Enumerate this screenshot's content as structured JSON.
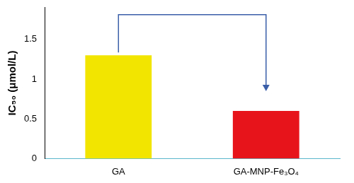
{
  "chart_data": {
    "type": "bar",
    "y_label": "IC₅₀ (μmol/L)",
    "categories": [
      "GA",
      "GA-MNP-Fe₃O₄"
    ],
    "values": [
      1.3,
      0.6
    ],
    "colors": [
      "#f2e600",
      "#e8141b"
    ],
    "ylim": [
      0,
      1.9
    ],
    "yticks": [
      0,
      0.5,
      1,
      1.5
    ],
    "grid": false
  }
}
